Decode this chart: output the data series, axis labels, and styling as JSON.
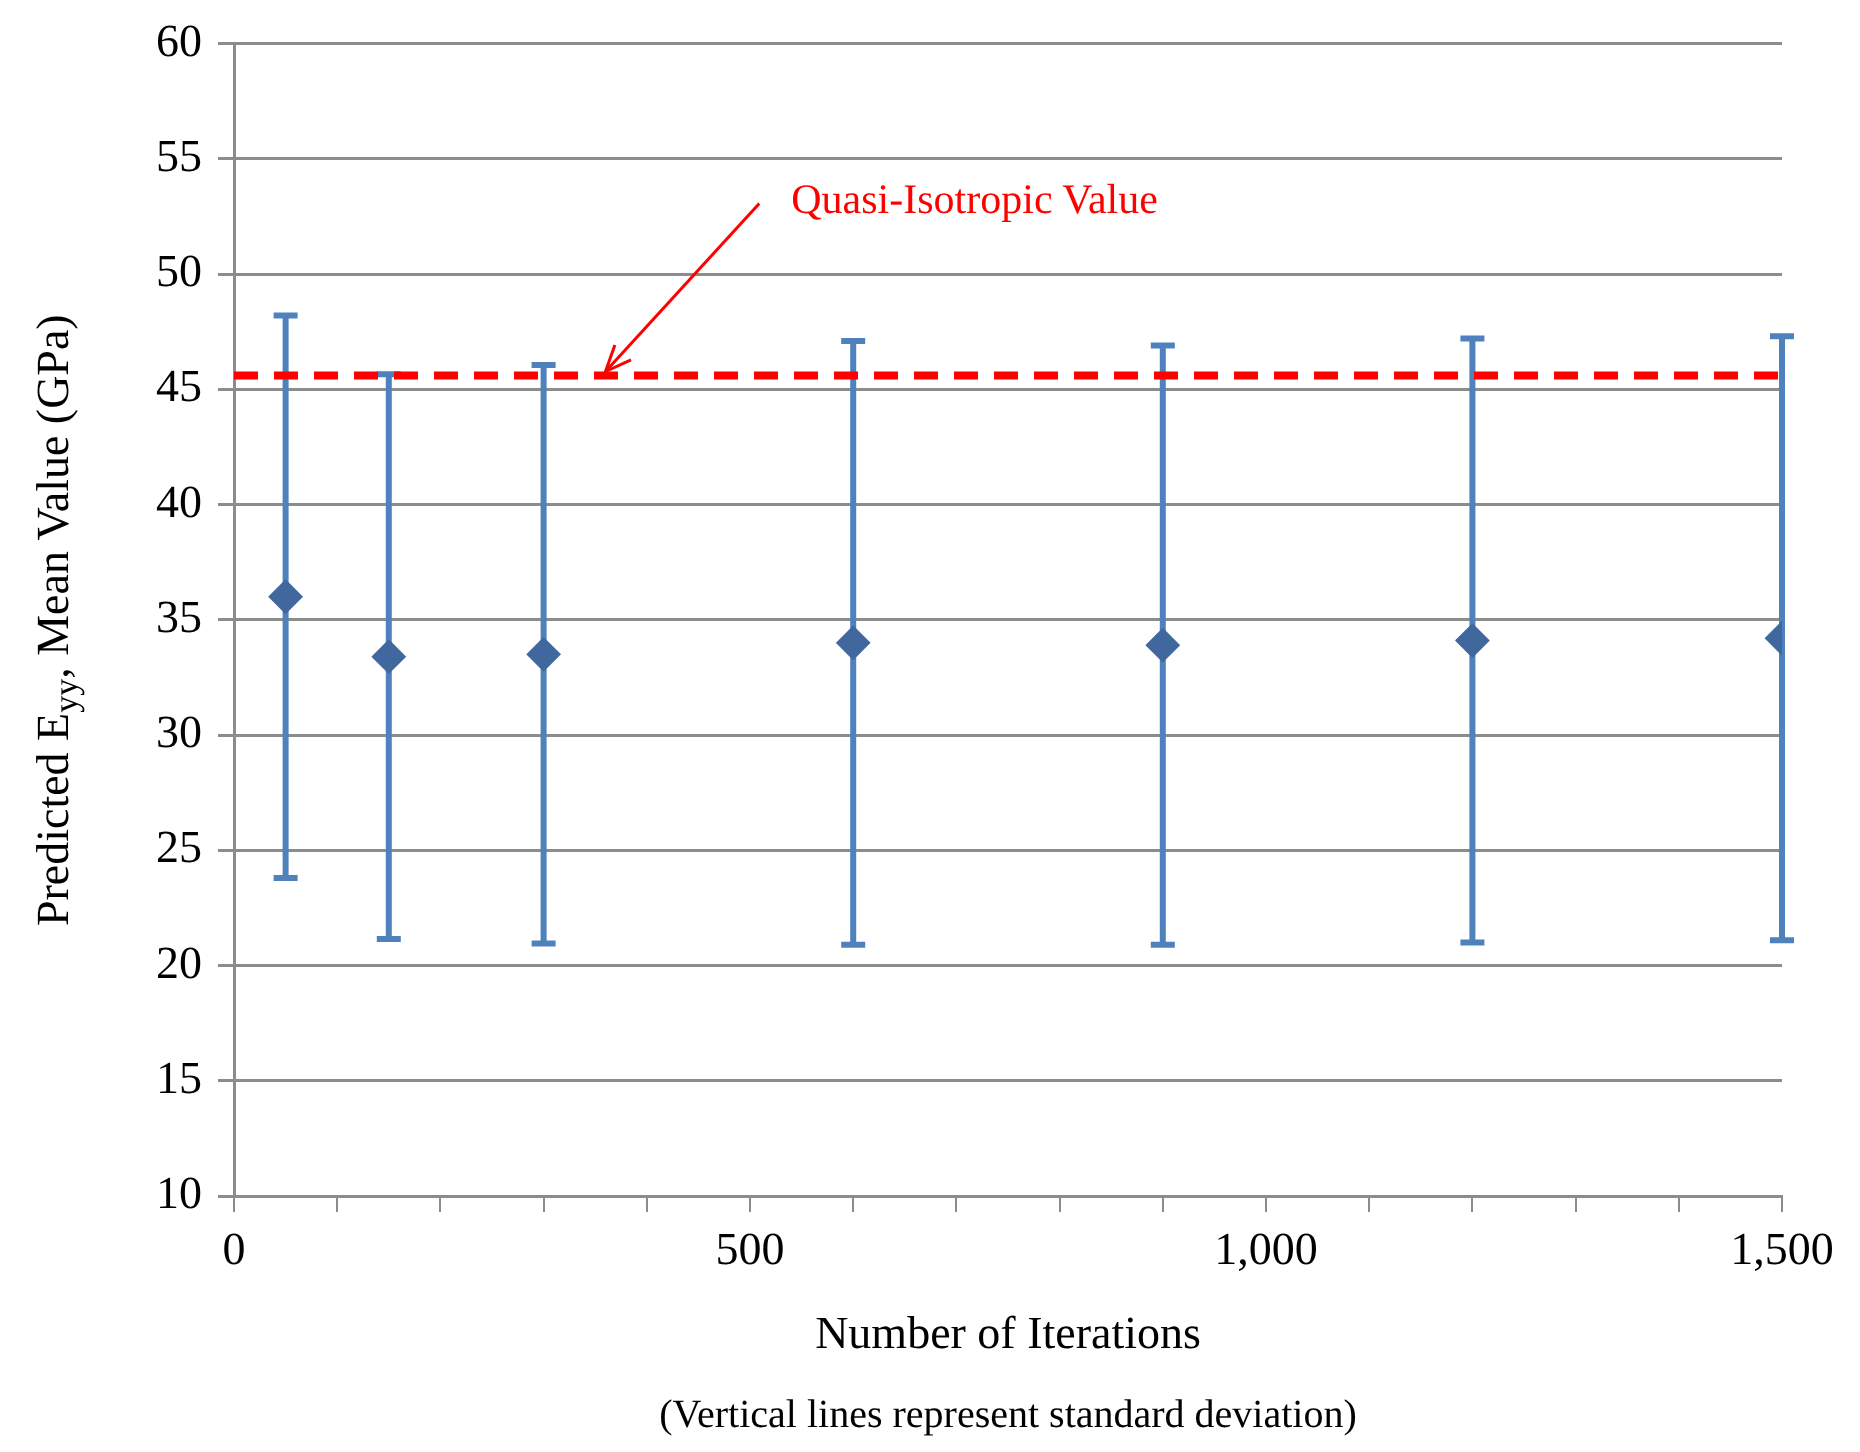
{
  "chart_data": {
    "type": "scatter",
    "xlabel": "Number of Iterations",
    "ylabel": "Predicted E$_{yy}$, Mean Value (GPa)",
    "series": [
      {
        "color": "#41689e",
        "x": [
          50,
          150,
          300,
          600,
          900,
          1200,
          1500
        ],
        "values": [
          36.0,
          33.4,
          33.5,
          34.0,
          33.9,
          34.1,
          34.2
        ],
        "errors": [
          12.2,
          12.25,
          12.55,
          13.1,
          13.0,
          13.1,
          13.1
        ]
      }
    ],
    "xlim": [
      0,
      1500
    ],
    "xticks": [
      0,
      {
        "value": 100,
        "label": null
      },
      {
        "value": 200,
        "label": null
      },
      {
        "value": 300,
        "label": null
      },
      {
        "value": 400,
        "label": null
      },
      500,
      {
        "value": 600,
        "label": null
      },
      {
        "value": 700,
        "label": null
      },
      {
        "value": 800,
        "label": null
      },
      {
        "value": 900,
        "label": null
      },
      {
        "value": 1000,
        "label": "1,000"
      },
      {
        "value": 1100,
        "label": null
      },
      {
        "value": 1200,
        "label": null
      },
      {
        "value": 1300,
        "label": null
      },
      {
        "value": 1400,
        "label": null
      },
      {
        "value": 1500,
        "label": "1,500"
      }
    ],
    "ylim": [
      10,
      60
    ],
    "yticks": [
      10,
      15,
      20,
      25,
      30,
      35,
      40,
      45,
      50,
      55,
      60
    ],
    "ref_lines": [
      {
        "axis": "y",
        "value": 45.6,
        "label": "Quasi-Isotropic Value",
        "color": "#ff0000",
        "line_style": "dashed"
      }
    ],
    "annotations": [
      "(Vertical lines represent standard deviation)"
    ],
    "grid": "y",
    "marker": "diamond",
    "legend": false
  }
}
